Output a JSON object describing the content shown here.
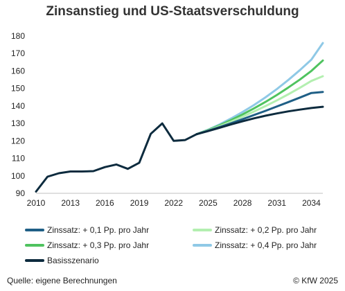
{
  "chart_data": {
    "type": "line",
    "title": "Zinsanstieg und US-Staatsverschuldung",
    "xlim": [
      2010,
      2035
    ],
    "ylim": [
      90,
      180
    ],
    "x_ticks": [
      2010,
      2013,
      2016,
      2019,
      2022,
      2025,
      2028,
      2031,
      2034
    ],
    "y_ticks": [
      90,
      100,
      110,
      120,
      130,
      140,
      150,
      160,
      170,
      180
    ],
    "grid": false,
    "legend_position": "bottom",
    "history": {
      "x": [
        2010,
        2011,
        2012,
        2013,
        2014,
        2015,
        2016,
        2017,
        2018,
        2019,
        2020,
        2021,
        2022,
        2023,
        2024
      ],
      "y": [
        91,
        99.5,
        101.5,
        102.5,
        102.5,
        102.7,
        105,
        106.5,
        104,
        107.5,
        124,
        130,
        120,
        120.5,
        123.8
      ]
    },
    "series": [
      {
        "name": "Zinssatz: + 0,1 Pp. pro Jahr",
        "color": "#1f5f86",
        "x": [
          2024,
          2025,
          2026,
          2027,
          2028,
          2029,
          2030,
          2031,
          2032,
          2033,
          2034,
          2035
        ],
        "y": [
          123.8,
          125.8,
          127.9,
          130.1,
          132.4,
          134.8,
          137.2,
          139.7,
          142.2,
          144.8,
          147.4,
          148
        ]
      },
      {
        "name": "Zinssatz: + 0,2 Pp. pro Jahr",
        "color": "#b3efb0",
        "x": [
          2024,
          2025,
          2026,
          2027,
          2028,
          2029,
          2030,
          2031,
          2032,
          2033,
          2034,
          2035
        ],
        "y": [
          123.8,
          126.0,
          128.4,
          131.0,
          133.8,
          136.8,
          139.9,
          143.2,
          146.7,
          150.4,
          154.3,
          157
        ]
      },
      {
        "name": "Zinssatz: + 0,3 Pp. pro Jahr",
        "color": "#4fc35f",
        "x": [
          2024,
          2025,
          2026,
          2027,
          2028,
          2029,
          2030,
          2031,
          2032,
          2033,
          2034,
          2035
        ],
        "y": [
          123.8,
          126.2,
          128.9,
          131.9,
          135.1,
          138.6,
          142.3,
          146.3,
          150.6,
          155.1,
          160.0,
          166
        ]
      },
      {
        "name": "Zinssatz: + 0,4 Pp. pro Jahr",
        "color": "#8fc9e6",
        "x": [
          2024,
          2025,
          2026,
          2027,
          2028,
          2029,
          2030,
          2031,
          2032,
          2033,
          2034,
          2035
        ],
        "y": [
          123.8,
          126.4,
          129.4,
          132.8,
          136.5,
          140.5,
          144.9,
          149.7,
          154.9,
          160.5,
          166.5,
          176
        ]
      },
      {
        "name": "Basisszenario",
        "color": "#0d2b3e",
        "x": [
          2024,
          2025,
          2026,
          2027,
          2028,
          2029,
          2030,
          2031,
          2032,
          2033,
          2034,
          2035
        ],
        "y": [
          123.8,
          125.6,
          127.5,
          129.4,
          131.2,
          132.9,
          134.4,
          135.7,
          136.9,
          137.9,
          138.8,
          139.5
        ]
      }
    ]
  },
  "footer": {
    "source": "Quelle: eigene Berechnungen",
    "copyright": "© KfW 2025"
  }
}
